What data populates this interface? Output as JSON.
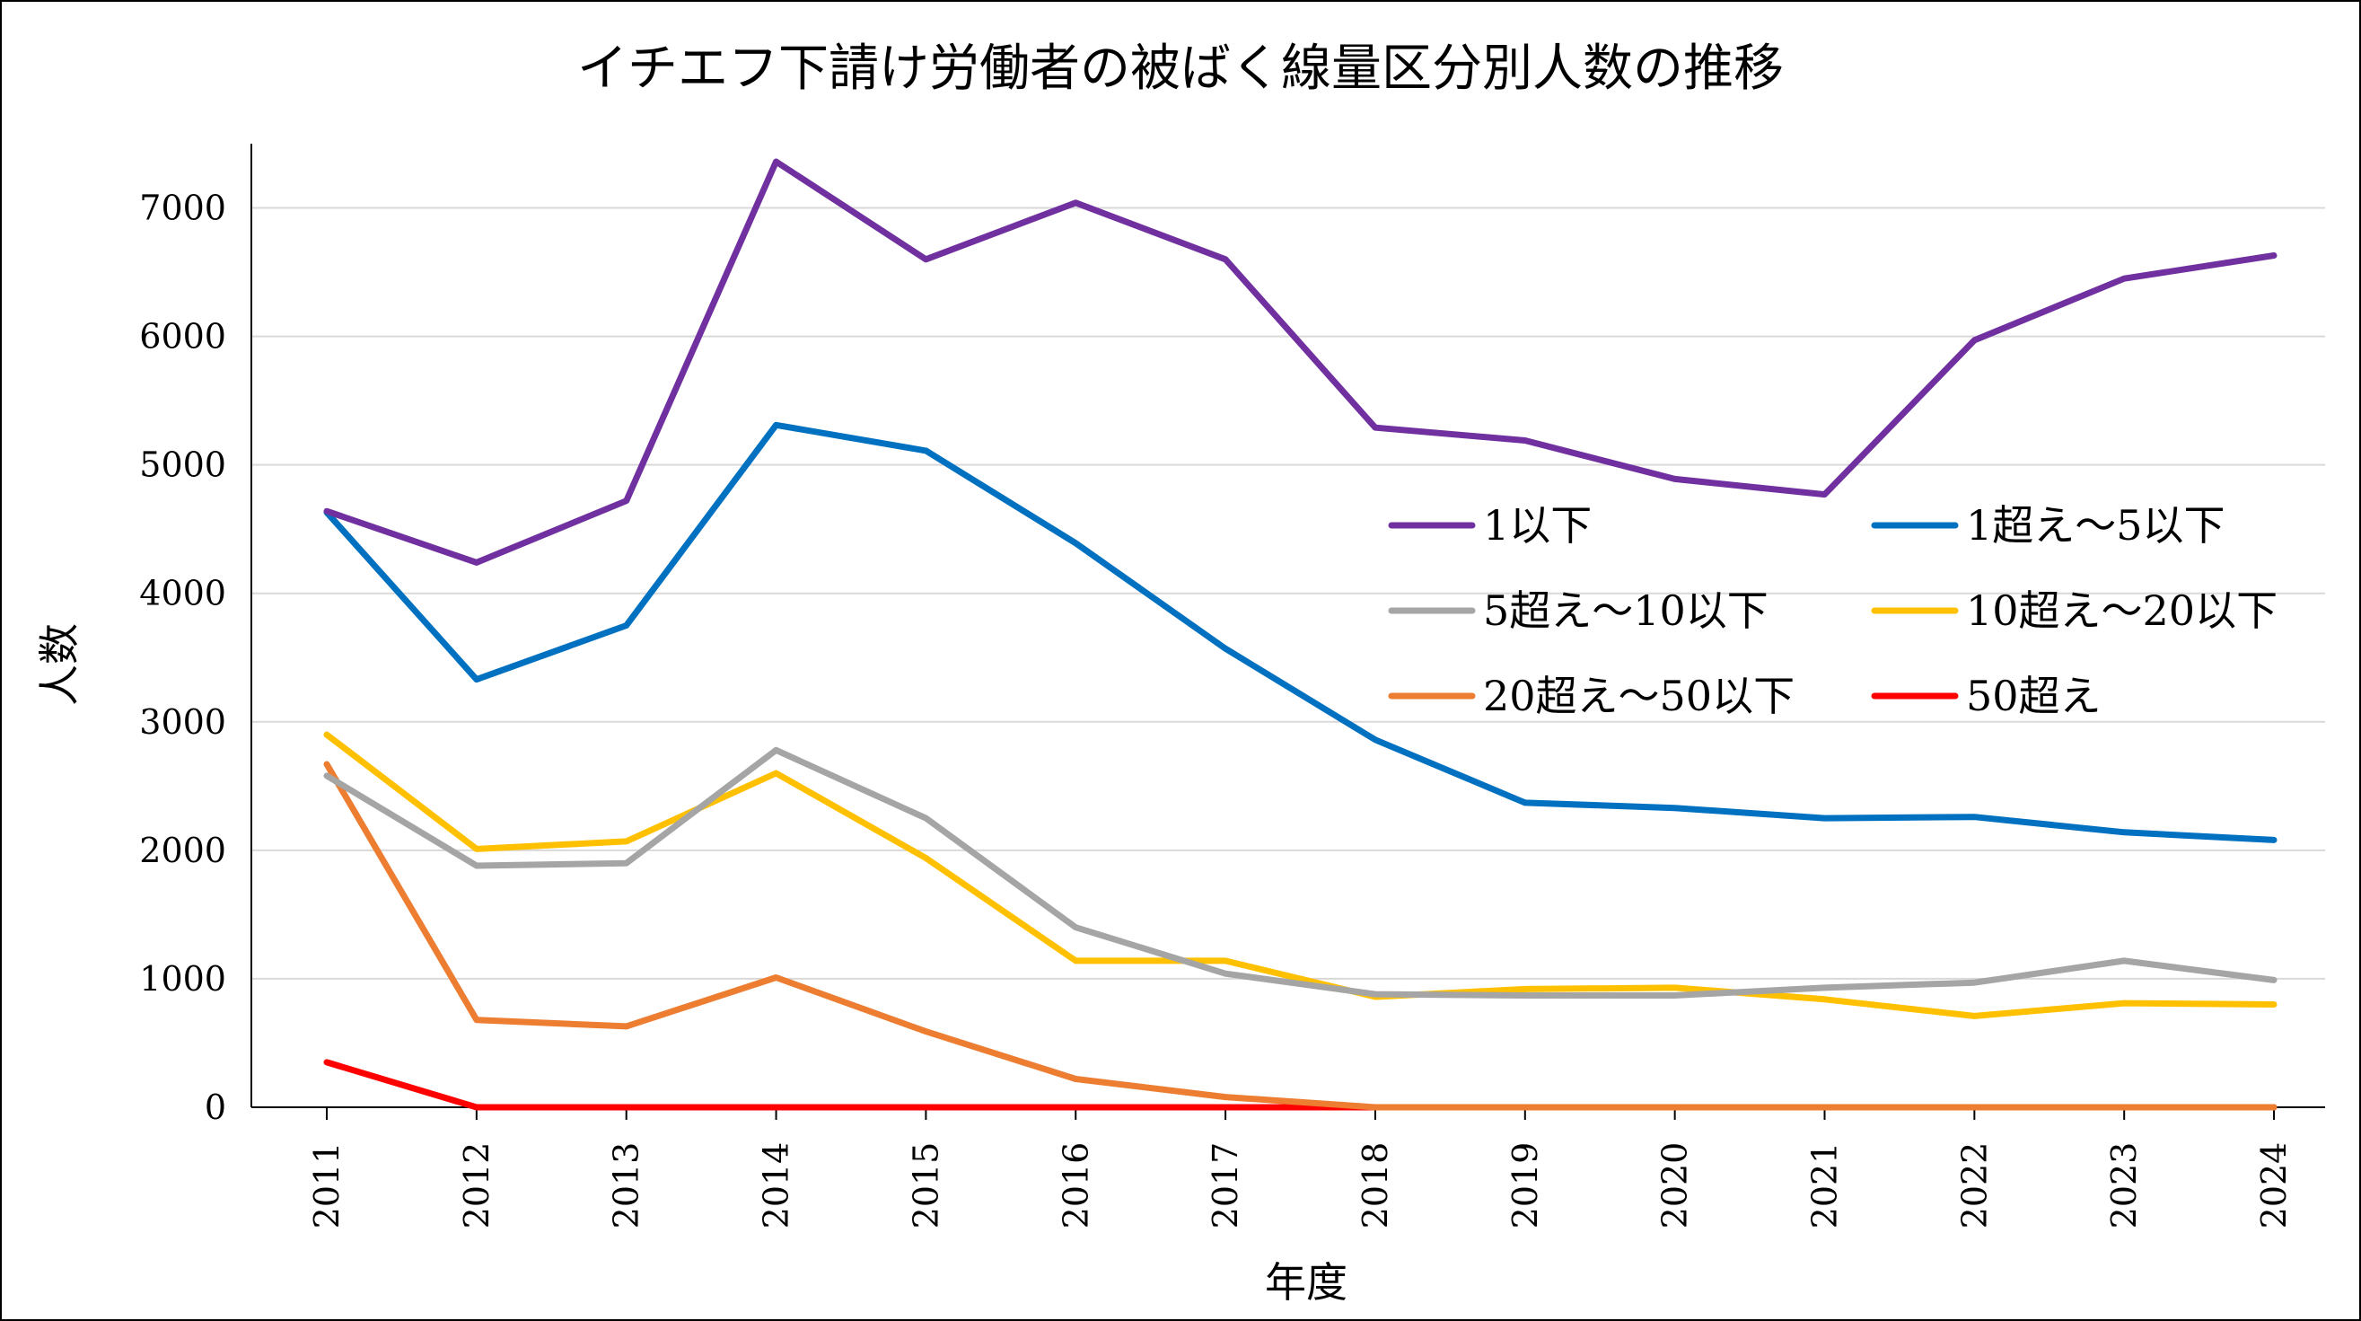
{
  "chart_data": {
    "type": "line",
    "title": "イチエフ下請け労働者の被ばく線量区分別人数の推移",
    "xlabel": "年度",
    "ylabel": "人数",
    "x": [
      "2011",
      "2012",
      "2013",
      "2014",
      "2015",
      "2016",
      "2017",
      "2018",
      "2019",
      "2020",
      "2021",
      "2022",
      "2023",
      "2024"
    ],
    "ylim": [
      0,
      7500
    ],
    "yticks": [
      "0",
      "1000",
      "2000",
      "3000",
      "4000",
      "5000",
      "6000",
      "7000"
    ],
    "grid": true,
    "legend_position": "right-middle",
    "series": [
      {
        "name": "1以下",
        "color": "#7030A0",
        "values": [
          4640,
          4240,
          4720,
          7360,
          6600,
          7040,
          6600,
          5290,
          5190,
          4890,
          4770,
          5970,
          6450,
          6630
        ]
      },
      {
        "name": "1超え～5以下",
        "color": "#0070C0",
        "values": [
          4630,
          3330,
          3750,
          5310,
          5110,
          4390,
          3570,
          2860,
          2370,
          2330,
          2250,
          2260,
          2140,
          2080
        ]
      },
      {
        "name": "5超え～10以下",
        "color": "#A5A5A5",
        "values": [
          2580,
          1880,
          1900,
          2780,
          2250,
          1400,
          1040,
          880,
          870,
          870,
          930,
          970,
          1140,
          990
        ]
      },
      {
        "name": "10超え～20以下",
        "color": "#FFC000",
        "values": [
          2900,
          2010,
          2070,
          2600,
          1940,
          1140,
          1140,
          860,
          920,
          930,
          840,
          710,
          810,
          800
        ]
      },
      {
        "name": "20超え～50以下",
        "color": "#ED7D31",
        "values": [
          2670,
          680,
          630,
          1010,
          590,
          220,
          80,
          0,
          0,
          0,
          0,
          0,
          0,
          0
        ]
      },
      {
        "name": "50超え",
        "color": "#FF0000",
        "values": [
          350,
          0,
          0,
          0,
          0,
          0,
          0,
          0,
          0,
          0,
          0,
          0,
          0,
          0
        ]
      }
    ]
  }
}
